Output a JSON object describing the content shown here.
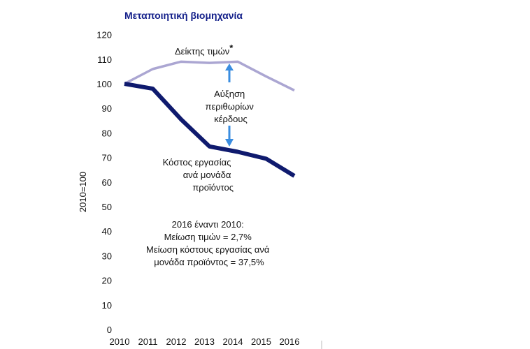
{
  "chart_data": {
    "type": "line",
    "title": "Μεταποιητική βιομηχανία",
    "xlabel": "",
    "ylabel": "2010=100",
    "ylim": [
      0,
      120
    ],
    "yticks": [
      "0",
      "10",
      "20",
      "30",
      "40",
      "50",
      "60",
      "70",
      "80",
      "90",
      "100",
      "110",
      "120"
    ],
    "x": [
      "2010",
      "2011",
      "2012",
      "2013",
      "2014",
      "2015",
      "2016"
    ],
    "grid": false,
    "series": [
      {
        "name": "Δείκτης τιμών*",
        "color": "#aba6d2",
        "values": [
          100,
          106,
          109,
          108.5,
          109,
          103,
          97.3
        ]
      },
      {
        "name": "Κόστος εργασίας ανά μονάδα προϊόντος",
        "color": "#0f1a6e",
        "values": [
          100,
          98,
          85.5,
          74.5,
          72.3,
          69.5,
          62.5
        ]
      }
    ],
    "annotations": {
      "price_label": "Δείκτης τιμών",
      "price_star": "*",
      "margin_lines": [
        "Αύξηση",
        "περιθωρίων",
        "κέρδους"
      ],
      "cost_lines": [
        "Κόστος εργασίας",
        "ανά μονάδα",
        "προϊόντος"
      ],
      "summary_lines": [
        "2016 έναντι 2010:",
        "Μείωση τιμών = 2,7%",
        "Μείωση κόστους εργασίας ανά",
        "μονάδα προϊόντος = 37,5%"
      ],
      "arrow_color": "#3a8de0"
    }
  }
}
